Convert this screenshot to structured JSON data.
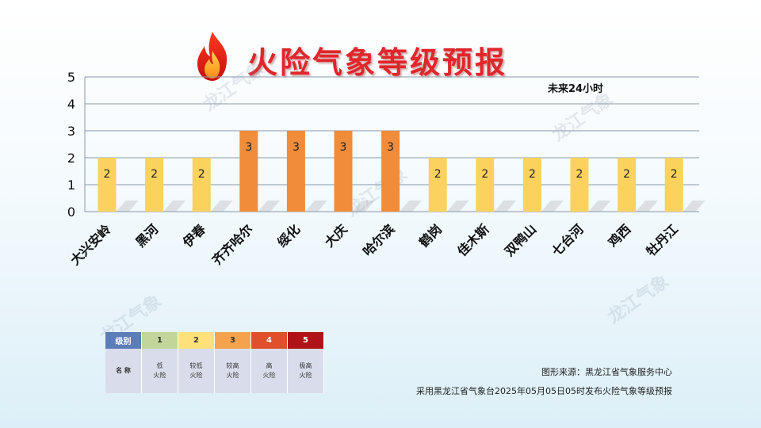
{
  "title": "火险气象等级预报",
  "chart_data": {
    "type": "bar",
    "annotation": "未来24小时",
    "categories": [
      "大兴安岭",
      "黑河",
      "伊春",
      "齐齐哈尔",
      "绥化",
      "大庆",
      "哈尔滨",
      "鹤岗",
      "佳木斯",
      "双鸭山",
      "七台河",
      "鸡西",
      "牡丹江"
    ],
    "values": [
      2,
      2,
      2,
      3,
      3,
      3,
      3,
      2,
      2,
      2,
      2,
      2,
      2
    ],
    "ylim": [
      0,
      5
    ],
    "yticks": [
      0,
      1,
      2,
      3,
      4,
      5
    ],
    "grid": true,
    "level_colors": {
      "2": "#fcd25e",
      "3": "#f08c3a"
    }
  },
  "legend": {
    "header_label": "级别",
    "row_label": "名 称",
    "levels": [
      {
        "level": "1",
        "name_line1": "低",
        "name_line2": "火险",
        "color": "#c2d69b",
        "text_color": "#333333"
      },
      {
        "level": "2",
        "name_line1": "较低",
        "name_line2": "火险",
        "color": "#ffe17a",
        "text_color": "#333333"
      },
      {
        "level": "3",
        "name_line1": "较高",
        "name_line2": "火险",
        "color": "#f5a24e",
        "text_color": "#333333"
      },
      {
        "level": "4",
        "name_line1": "高",
        "name_line2": "火险",
        "color": "#e0502a",
        "text_color": "#ffffff"
      },
      {
        "level": "5",
        "name_line1": "极高",
        "name_line2": "火险",
        "color": "#b01317",
        "text_color": "#ffffff"
      }
    ],
    "header_color": "#5b7db8"
  },
  "footer": {
    "source": "图形来源：黑龙江省气象服务中心",
    "note": "采用黑龙江省气象台2025年05月05日05时发布火险气象等级预报"
  },
  "watermark_text": "龙江气象"
}
